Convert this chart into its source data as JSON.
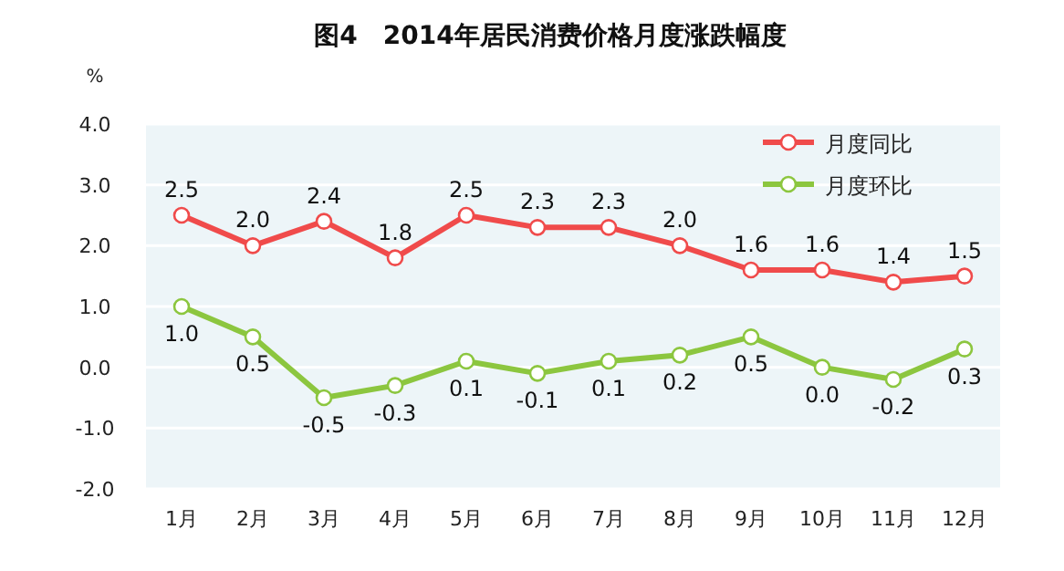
{
  "chart_data": {
    "type": "line",
    "title": "图4　2014年居民消费价格月度涨跌幅度",
    "ylabel": "%",
    "categories": [
      "1月",
      "2月",
      "3月",
      "4月",
      "5月",
      "6月",
      "7月",
      "8月",
      "9月",
      "10月",
      "11月",
      "12月"
    ],
    "series": [
      {
        "name": "月度同比",
        "color": "#f04b4b",
        "values": [
          2.5,
          2.0,
          2.4,
          1.8,
          2.5,
          2.3,
          2.3,
          2.0,
          1.6,
          1.6,
          1.4,
          1.5
        ],
        "value_labels": [
          "2.5",
          "2.0",
          "2.4",
          "1.8",
          "2.5",
          "2.3",
          "2.3",
          "2.0",
          "1.6",
          "1.6",
          "1.4",
          "1.5"
        ]
      },
      {
        "name": "月度环比",
        "color": "#8cc63f",
        "values": [
          1.0,
          0.5,
          -0.5,
          -0.3,
          0.1,
          -0.1,
          0.1,
          0.2,
          0.5,
          0.0,
          -0.2,
          0.3
        ],
        "value_labels": [
          "1.0",
          "0.5",
          "-0.5",
          "-0.3",
          "0.1",
          "-0.1",
          "0.1",
          "0.2",
          "0.5",
          "0.0",
          "-0.2",
          "0.3"
        ]
      }
    ],
    "ylim": [
      -2,
      4
    ],
    "yticks": [
      {
        "value": 4,
        "label": "4.0"
      },
      {
        "value": 3,
        "label": "3.0"
      },
      {
        "value": 2,
        "label": "2.0"
      },
      {
        "value": 1,
        "label": "1.0"
      },
      {
        "value": 0,
        "label": "0.0"
      },
      {
        "value": -1,
        "label": "-1.0"
      },
      {
        "value": -2,
        "label": "-2.0"
      }
    ],
    "grid": "y",
    "legend": "top right",
    "marker": "circle",
    "line_style": "solid"
  }
}
